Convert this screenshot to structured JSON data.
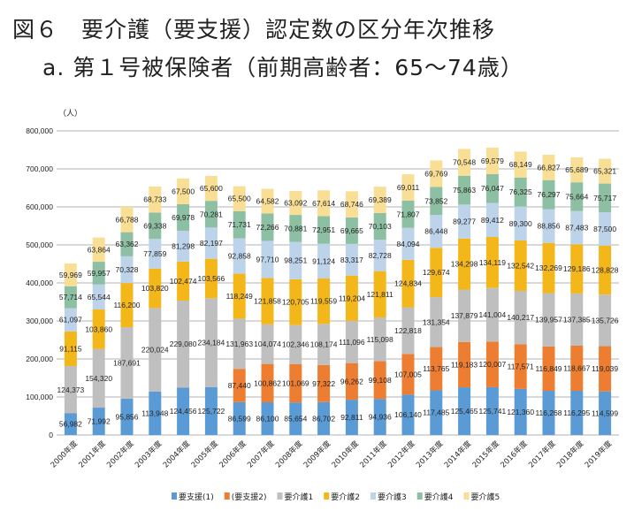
{
  "title_line1": "図６　要介護（要支援）認定数の区分年次推移",
  "title_line2": "a.  第１号被保険者（前期高齢者：65〜74歳）",
  "chart_data": {
    "type": "bar",
    "stacked": true,
    "unit_label": "（人）",
    "ylim": [
      0,
      800000
    ],
    "yticks": [
      "0",
      "100,000",
      "200,000",
      "300,000",
      "400,000",
      "500,000",
      "600,000",
      "700,000",
      "800,000"
    ],
    "grid": true,
    "legend_position": "bottom",
    "categories": [
      "2000年度",
      "2001年度",
      "2002年度",
      "2003年度",
      "2004年度",
      "2005年度",
      "2006年度",
      "2007年度",
      "2008年度",
      "2009年度",
      "2010年度",
      "2011年度",
      "2012年度",
      "2013年度",
      "2014年度",
      "2015年度",
      "2016年度",
      "2017年度",
      "2018年度",
      "2019年度"
    ],
    "series": [
      {
        "name": "要支援(1)",
        "color": "#5b9bd5",
        "values": [
          56982,
          71992,
          95856,
          113948,
          124456,
          125722,
          86599,
          86100,
          85654,
          86702,
          92811,
          94936,
          106140,
          117485,
          125465,
          125741,
          121360,
          116268,
          116295,
          114599
        ]
      },
      {
        "name": "(要支援2)",
        "color": "#ed7d31",
        "values": [
          null,
          null,
          null,
          null,
          null,
          null,
          87440,
          100862,
          101069,
          97322,
          96262,
          99108,
          107005,
          113765,
          119183,
          120007,
          117571,
          116849,
          118667,
          119039
        ]
      },
      {
        "name": "要介護1",
        "color": "#bfbfbf",
        "values": [
          124373,
          154320,
          187691,
          220024,
          229080,
          234184,
          131963,
          104074,
          102346,
          108174,
          111096,
          115098,
          122818,
          131354,
          137879,
          141004,
          140217,
          139957,
          137385,
          135726
        ]
      },
      {
        "name": "要介護2",
        "color": "#f4b71a",
        "values": [
          91115,
          103860,
          116200,
          103820,
          102474,
          103566,
          118249,
          121858,
          120705,
          119559,
          119204,
          121811,
          124834,
          129674,
          134298,
          134119,
          132542,
          132269,
          129186,
          128828
        ]
      },
      {
        "name": "要介護3",
        "color": "#bdd3ea",
        "values": [
          61097,
          65544,
          70328,
          77859,
          81298,
          82197,
          92858,
          97710,
          98251,
          91124,
          83317,
          82728,
          84094,
          86448,
          89277,
          89412,
          89300,
          88856,
          87483,
          87500
        ]
      },
      {
        "name": "要介護4",
        "color": "#8dbfa3",
        "values": [
          57714,
          59957,
          63362,
          69338,
          69978,
          70281,
          71731,
          72266,
          70881,
          72951,
          69665,
          70103,
          71807,
          73852,
          75863,
          76047,
          76325,
          76297,
          75664,
          75717
        ]
      },
      {
        "name": "要介護5",
        "color": "#f9df95",
        "values": [
          59969,
          63864,
          66788,
          68733,
          67500,
          65600,
          65500,
          64582,
          63092,
          67614,
          68746,
          69389,
          69011,
          69769,
          70548,
          69579,
          68149,
          66827,
          65689,
          65321
        ]
      }
    ]
  }
}
